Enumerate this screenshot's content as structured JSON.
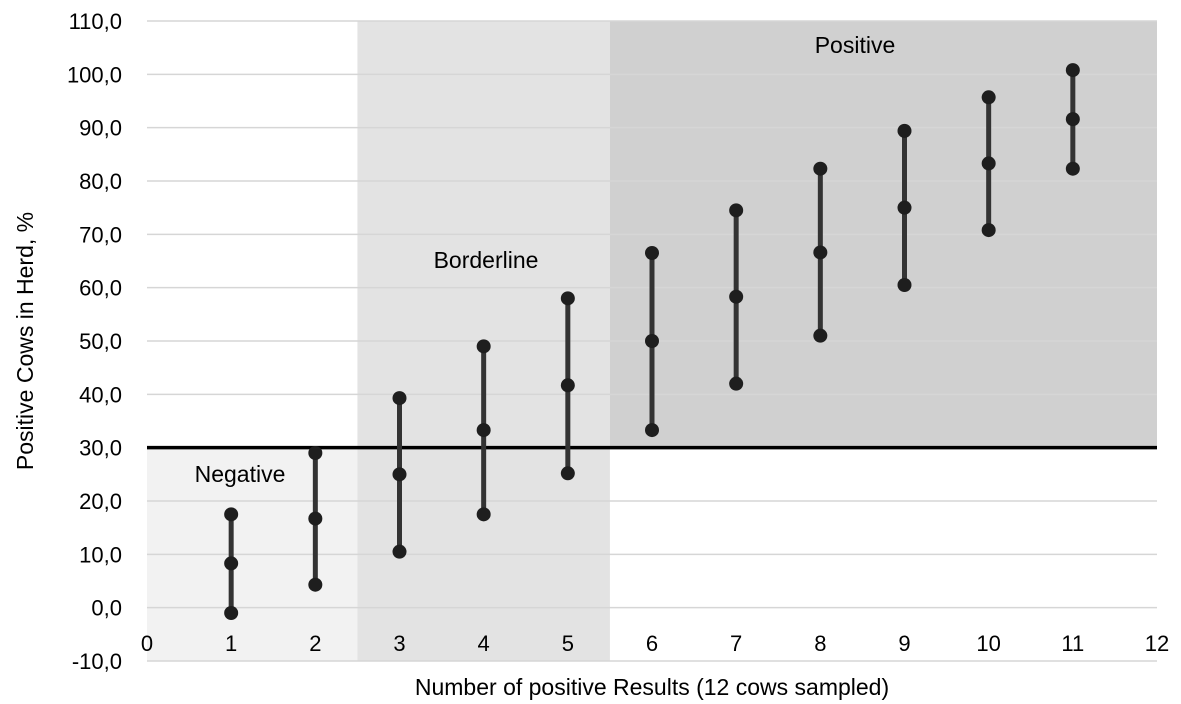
{
  "chart_data": {
    "type": "scatter",
    "xlabel": "Number of positive Results (12 cows sampled)",
    "ylabel": "Positive Cows in Herd, %",
    "xlim": [
      0,
      12
    ],
    "ylim": [
      -10,
      110
    ],
    "x_ticks": [
      "0",
      "1",
      "2",
      "3",
      "4",
      "5",
      "6",
      "7",
      "8",
      "9",
      "10",
      "11",
      "12"
    ],
    "y_ticks": [
      "-10,0",
      "0,0",
      "10,0",
      "20,0",
      "30,0",
      "40,0",
      "50,0",
      "60,0",
      "70,0",
      "80,0",
      "90,0",
      "100,0",
      "110,0"
    ],
    "grid": "horizontal",
    "threshold": 30,
    "zones": [
      {
        "label": "Negative",
        "x_from": 0,
        "x_to": 2.5,
        "y_from": -10,
        "y_to": 30,
        "color": "#f2f2f2"
      },
      {
        "label": "Borderline",
        "x_from": 2.5,
        "x_to": 5.5,
        "y_from": -10,
        "y_to": 110,
        "color": "#e3e3e3"
      },
      {
        "label": "Positive",
        "x_from": 5.5,
        "x_to": 12,
        "y_from": 30,
        "y_to": 110,
        "color": "#d0d0d0"
      }
    ],
    "points": [
      {
        "x": 1,
        "low": -1,
        "mid": 8.3,
        "high": 17.5
      },
      {
        "x": 2,
        "low": 4.3,
        "mid": 16.7,
        "high": 29
      },
      {
        "x": 3,
        "low": 10.5,
        "mid": 25,
        "high": 39.3
      },
      {
        "x": 4,
        "low": 17.5,
        "mid": 33.3,
        "high": 49
      },
      {
        "x": 5,
        "low": 25.2,
        "mid": 41.7,
        "high": 58
      },
      {
        "x": 6,
        "low": 33.3,
        "mid": 50,
        "high": 66.5
      },
      {
        "x": 7,
        "low": 42,
        "mid": 58.3,
        "high": 74.5
      },
      {
        "x": 8,
        "low": 51,
        "mid": 66.6,
        "high": 82.3
      },
      {
        "x": 9,
        "low": 60.5,
        "mid": 75,
        "high": 89.4
      },
      {
        "x": 10,
        "low": 70.8,
        "mid": 83.3,
        "high": 95.7
      },
      {
        "x": 11,
        "low": 82.3,
        "mid": 91.6,
        "high": 100.8
      }
    ],
    "colors": {
      "line": "#333333",
      "dot": "#1e1e1e",
      "threshold": "#000000",
      "grid": "#d6d6d6"
    }
  }
}
